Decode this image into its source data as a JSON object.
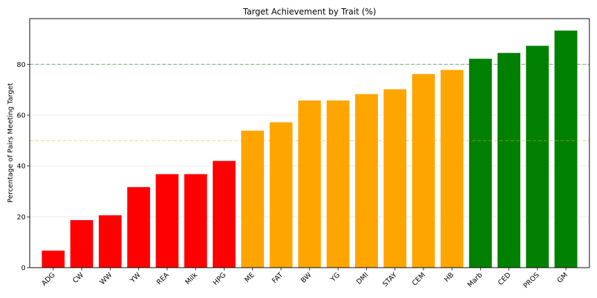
{
  "chart_data": {
    "type": "bar",
    "title": "Target Achievement by Trait (%)",
    "xlabel": "",
    "ylabel": "Percentage of Pairs Meeting Target",
    "categories": [
      "ADG",
      "CW",
      "WW",
      "YW",
      "REA",
      "Milk",
      "HPG",
      "ME",
      "FAT",
      "BW",
      "YG",
      "DMI",
      "STAY",
      "CEM",
      "HB",
      "Marb",
      "CED",
      "PROS",
      "GM"
    ],
    "values": [
      6.7,
      18.7,
      20.6,
      31.7,
      36.8,
      36.8,
      42.0,
      53.9,
      57.2,
      65.8,
      65.8,
      68.3,
      70.2,
      76.2,
      77.8,
      82.2,
      84.5,
      87.3,
      93.3
    ],
    "bar_colors": [
      "#ff0000",
      "#ff0000",
      "#ff0000",
      "#ff0000",
      "#ff0000",
      "#ff0000",
      "#ff0000",
      "#ffa500",
      "#ffa500",
      "#ffa500",
      "#ffa500",
      "#ffa500",
      "#ffa500",
      "#ffa500",
      "#ffa500",
      "#008000",
      "#008000",
      "#008000",
      "#008000"
    ],
    "ylim": [
      0,
      98
    ],
    "yticks": [
      0,
      20,
      40,
      60,
      80
    ],
    "grid": "y",
    "reference_lines": [
      {
        "value": 80,
        "color": "#008000",
        "style": "dashed"
      },
      {
        "value": 50,
        "color": "#ffa500",
        "style": "dashed"
      }
    ]
  }
}
